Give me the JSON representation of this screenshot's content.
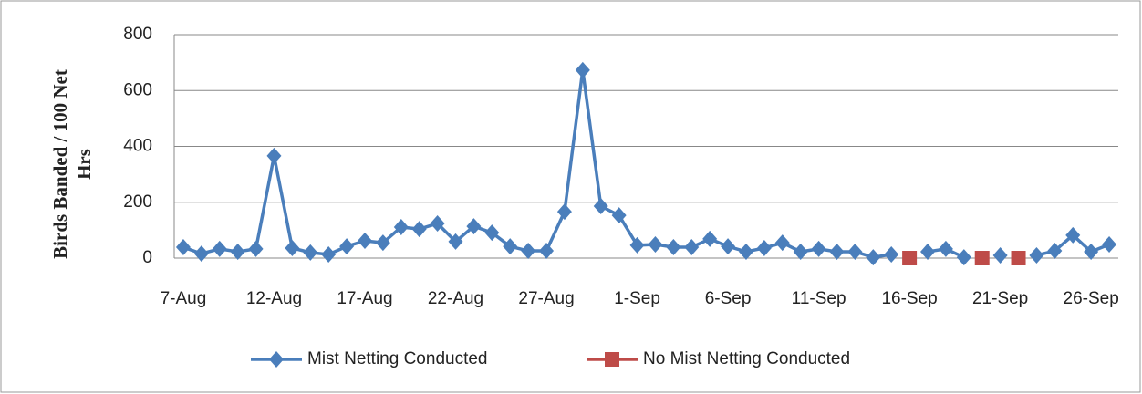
{
  "chart_data": {
    "type": "line",
    "y_label_lines": [
      "Birds Banded / 100 Net",
      "Hrs"
    ],
    "categories": [
      "7-Aug",
      null,
      null,
      null,
      null,
      "12-Aug",
      null,
      null,
      null,
      null,
      "17-Aug",
      null,
      null,
      null,
      null,
      "22-Aug",
      null,
      null,
      null,
      null,
      "27-Aug",
      null,
      null,
      null,
      null,
      "1-Sep",
      null,
      null,
      null,
      null,
      "6-Sep",
      null,
      null,
      null,
      null,
      "11-Sep",
      null,
      null,
      null,
      null,
      "16-Sep",
      null,
      null,
      null,
      null,
      "21-Sep",
      null,
      null,
      null,
      null,
      "26-Sep",
      null
    ],
    "series": [
      {
        "name": "Mist Netting Conducted",
        "color": "#4a7ebb",
        "marker": "diamond",
        "values": [
          39,
          16,
          33,
          23,
          33,
          366,
          36,
          20,
          13,
          42,
          62,
          55,
          111,
          104,
          124,
          59,
          114,
          91,
          42,
          26,
          26,
          166,
          673,
          186,
          153,
          46,
          49,
          39,
          39,
          69,
          42,
          23,
          36,
          55,
          23,
          33,
          23,
          23,
          3,
          13,
          null,
          23,
          33,
          3,
          null,
          10,
          null,
          10,
          26,
          82,
          23,
          49
        ]
      },
      {
        "name": "No Mist Netting Conducted",
        "color": "#be4b48",
        "marker": "square",
        "values": [
          null,
          null,
          null,
          null,
          null,
          null,
          null,
          null,
          null,
          null,
          null,
          null,
          null,
          null,
          null,
          null,
          null,
          null,
          null,
          null,
          null,
          null,
          null,
          null,
          null,
          null,
          null,
          null,
          null,
          null,
          null,
          null,
          null,
          null,
          null,
          null,
          null,
          null,
          null,
          null,
          0,
          null,
          null,
          null,
          0,
          null,
          0,
          null,
          null,
          null,
          null,
          null
        ]
      }
    ],
    "ylim": [
      0,
      800
    ],
    "yticks": [
      0,
      200,
      400,
      600,
      800
    ],
    "grid": true,
    "legend": "bottom"
  }
}
